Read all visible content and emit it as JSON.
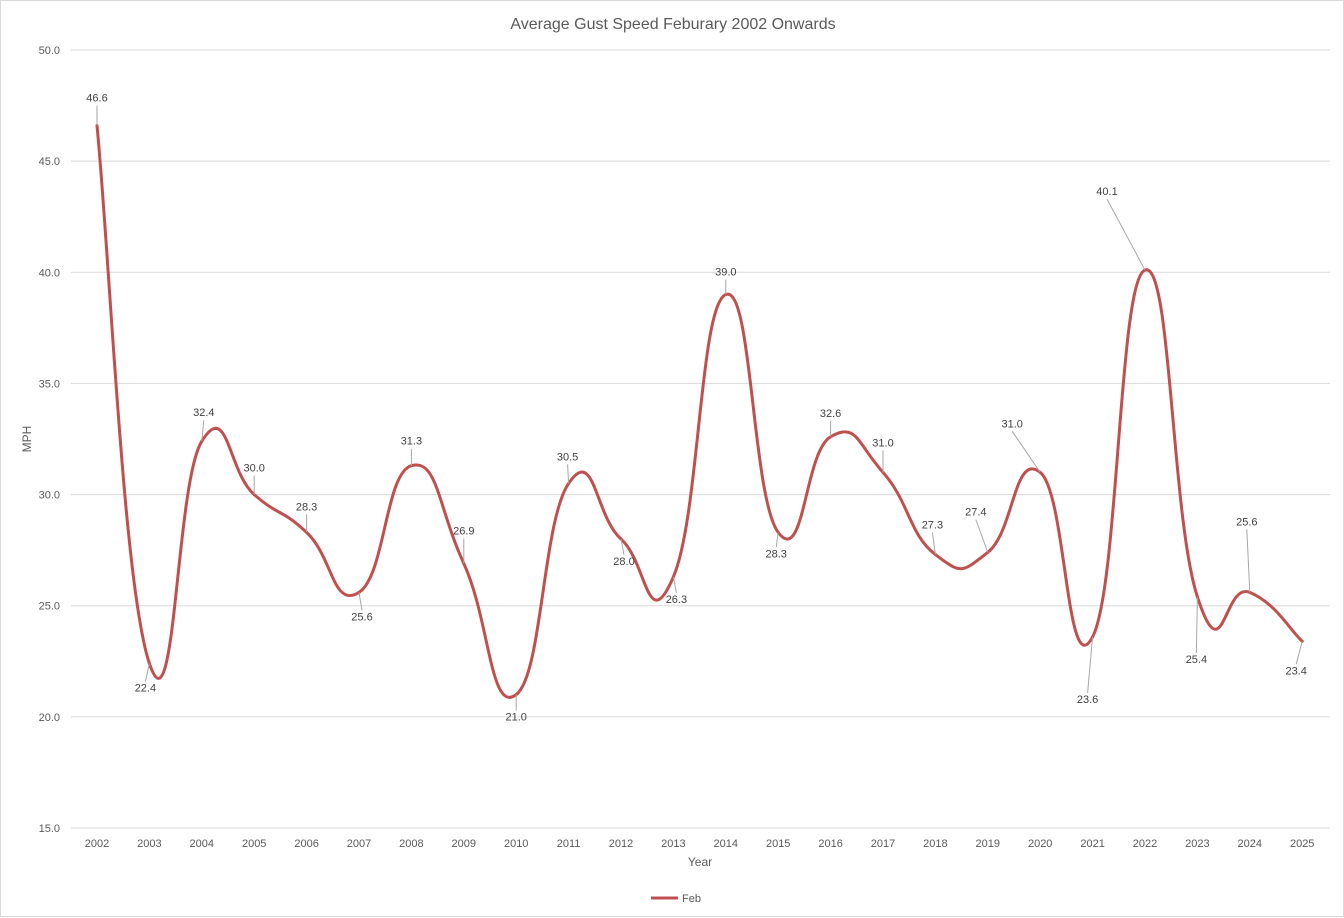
{
  "chart_data": {
    "type": "line",
    "title": "Average Gust Speed Feburary 2002 Onwards",
    "xlabel": "Year",
    "ylabel": "MPH",
    "ylim": [
      15,
      50
    ],
    "yticks": [
      "15.0",
      "20.0",
      "25.0",
      "30.0",
      "35.0",
      "40.0",
      "45.0",
      "50.0"
    ],
    "grid": true,
    "smooth": true,
    "legend_position": "bottom",
    "categories": [
      "2002",
      "2003",
      "2004",
      "2005",
      "2006",
      "2007",
      "2008",
      "2009",
      "2010",
      "2011",
      "2012",
      "2013",
      "2014",
      "2015",
      "2016",
      "2017",
      "2018",
      "2019",
      "2020",
      "2021",
      "2022",
      "2023",
      "2024",
      "2025"
    ],
    "series": [
      {
        "name": "Feb",
        "color": "#c0504d",
        "values": [
          46.6,
          22.4,
          32.4,
          30.0,
          28.3,
          25.6,
          31.3,
          26.9,
          21.0,
          30.5,
          28.0,
          26.3,
          39.0,
          28.3,
          32.6,
          31.0,
          27.3,
          27.4,
          31.0,
          23.6,
          40.1,
          25.4,
          25.6,
          23.4
        ],
        "labels": [
          "46.6",
          "22.4",
          "32.4",
          "30.0",
          "28.3",
          "25.6",
          "31.3",
          "26.9",
          "21.0",
          "30.5",
          "28.0",
          "26.3",
          "39.0",
          "28.3",
          "32.6",
          "31.0",
          "27.3",
          "27.4",
          "31.0",
          "23.6",
          "40.1",
          "25.4",
          "25.6",
          "23.4"
        ]
      }
    ]
  }
}
